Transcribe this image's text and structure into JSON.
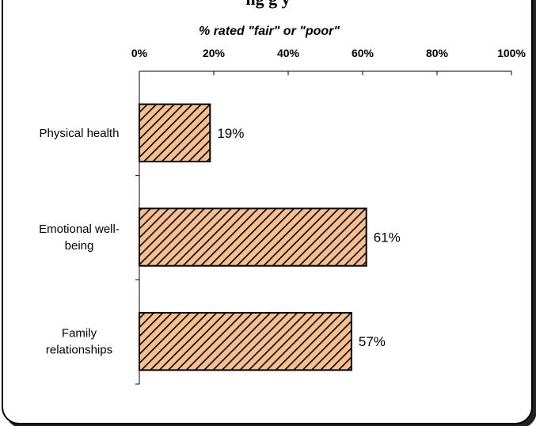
{
  "chart_data": {
    "type": "bar",
    "orientation": "horizontal",
    "title": "",
    "xlabel": "% rated \"fair\" or \"poor\"",
    "ylabel": "",
    "xlim": [
      0,
      100
    ],
    "xticks": [
      "0%",
      "20%",
      "40%",
      "60%",
      "80%",
      "100%"
    ],
    "categories": [
      [
        "Physical health"
      ],
      [
        "Emotional well-",
        "being"
      ],
      [
        "Family",
        "relationships"
      ]
    ],
    "values": [
      19,
      61,
      57
    ],
    "data_labels": [
      "19%",
      "61%",
      "57%"
    ],
    "bar_fill": "#f7be8f",
    "bar_hatch": "#000000",
    "grid": false,
    "legend": "none"
  }
}
